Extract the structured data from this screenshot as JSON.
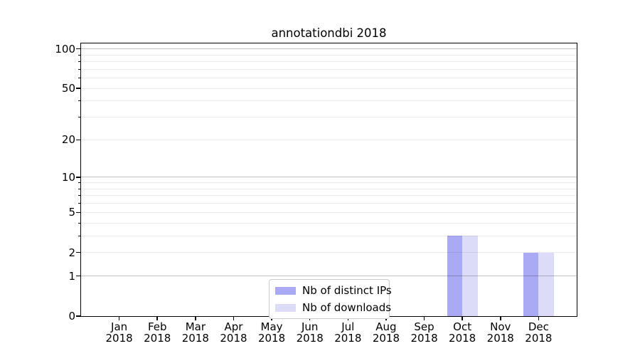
{
  "chart_data": {
    "type": "bar",
    "title": "annotationdbi 2018",
    "categories": [
      "Jan 2018",
      "Feb 2018",
      "Mar 2018",
      "Apr 2018",
      "May 2018",
      "Jun 2018",
      "Jul 2018",
      "Aug 2018",
      "Sep 2018",
      "Oct 2018",
      "Nov 2018",
      "Dec 2018"
    ],
    "series": [
      {
        "name": "Nb of distinct IPs",
        "color": "#a9a9f4",
        "values": [
          0,
          0,
          0,
          0,
          0,
          0,
          0,
          0,
          0,
          3,
          0,
          2
        ]
      },
      {
        "name": "Nb of downloads",
        "color": "#dcdcf9",
        "values": [
          0,
          0,
          0,
          0,
          0,
          0,
          0,
          0,
          0,
          3,
          0,
          2
        ]
      }
    ],
    "yscale": "log1p",
    "ylim": [
      0,
      110
    ],
    "yticks_labeled": [
      0,
      1,
      2,
      5,
      10,
      20,
      50,
      100
    ],
    "ygrid_major": [
      1,
      10,
      100
    ],
    "ygrid_minor": [
      2,
      3,
      4,
      5,
      6,
      7,
      8,
      9,
      20,
      30,
      40,
      50,
      60,
      70,
      80,
      90
    ],
    "legend_position": "lower center",
    "grid": "both",
    "background": "#ffffff"
  }
}
